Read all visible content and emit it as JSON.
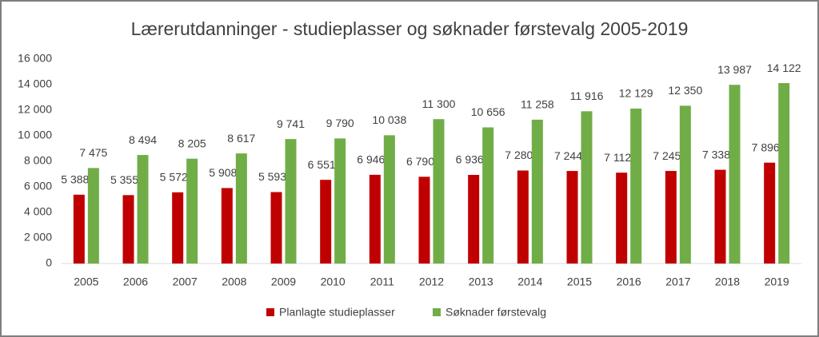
{
  "chart_data": {
    "type": "bar",
    "title": "Lærerutdanninger - studieplasser og søknader førstevalg 2005-2019",
    "categories": [
      "2005",
      "2006",
      "2007",
      "2008",
      "2009",
      "2010",
      "2011",
      "2012",
      "2013",
      "2014",
      "2015",
      "2016",
      "2017",
      "2018",
      "2019"
    ],
    "series": [
      {
        "name": "Planlagte studieplasser",
        "color": "#c00000",
        "values": [
          5388,
          5355,
          5572,
          5908,
          5593,
          6551,
          6946,
          6790,
          6936,
          7280,
          7244,
          7112,
          7245,
          7338,
          7896
        ],
        "value_labels": [
          "5 388",
          "5 355",
          "5 572",
          "5 908",
          "5 593",
          "6 551",
          "6 946",
          "6 790",
          "6 936",
          "7 280",
          "7 244",
          "7 112",
          "7 245",
          "7 338",
          "7 896"
        ]
      },
      {
        "name": "Søknader førstevalg",
        "color": "#70ad47",
        "values": [
          7475,
          8494,
          8205,
          8617,
          9741,
          9790,
          10038,
          11300,
          10656,
          11258,
          11916,
          12129,
          12350,
          13987,
          14122
        ],
        "value_labels": [
          "7 475",
          "8 494",
          "8 205",
          "8 617",
          "9 741",
          "9 790",
          "10 038",
          "11 300",
          "10 656",
          "11 258",
          "11 916",
          "12 129",
          "12 350",
          "13 987",
          "14 122"
        ]
      }
    ],
    "ylim": [
      0,
      16000
    ],
    "yticks": [
      0,
      {
        "value": 2000,
        "label": "2 000"
      },
      {
        "value": 4000,
        "label": "4 000"
      },
      {
        "value": 6000,
        "label": "6 000"
      },
      {
        "value": 8000,
        "label": "8 000"
      },
      {
        "value": 10000,
        "label": "10 000"
      },
      {
        "value": 12000,
        "label": "12 000"
      },
      {
        "value": 14000,
        "label": "14 000"
      },
      {
        "value": 16000,
        "label": "16 000"
      }
    ],
    "grid": false,
    "legend": "bottom"
  }
}
